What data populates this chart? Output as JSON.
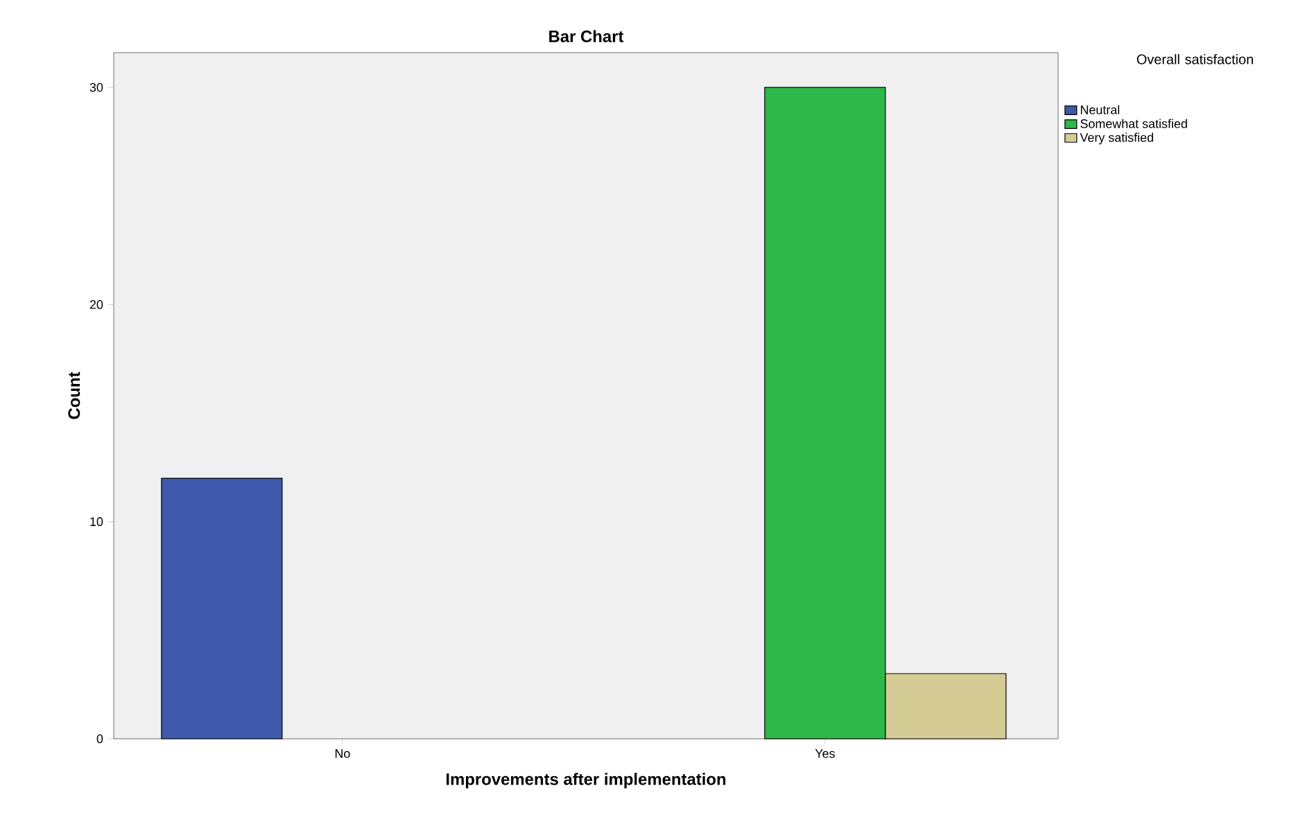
{
  "chart_data": {
    "type": "bar",
    "title": "Bar Chart",
    "xlabel": "Improvements after implementation",
    "ylabel": "Count",
    "legend_title": "Overall satisfaction",
    "categories": [
      "No",
      "Yes"
    ],
    "series": [
      {
        "name": "Neutral",
        "color": "#3e58ac",
        "values": [
          12,
          null
        ]
      },
      {
        "name": "Somewhat satisfied",
        "color": "#2fb84a",
        "values": [
          null,
          30
        ]
      },
      {
        "name": "Very satisfied",
        "color": "#d4cc94",
        "values": [
          null,
          3
        ]
      }
    ],
    "ylim": [
      0,
      31.6
    ],
    "yticks": [
      0,
      10,
      20,
      30
    ],
    "grid": false,
    "legend": "top right"
  }
}
